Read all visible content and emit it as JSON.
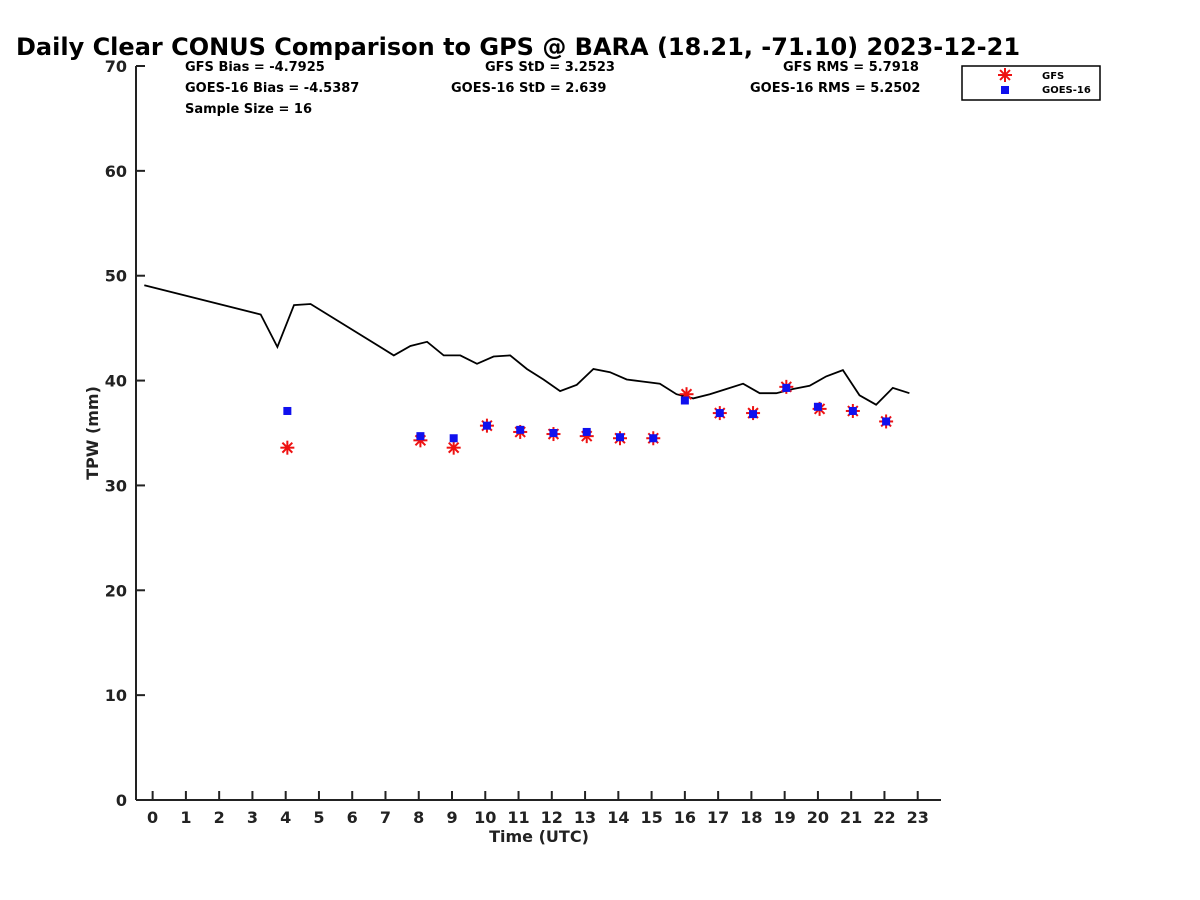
{
  "chart_data": {
    "type": "scatter",
    "title": "Daily Clear CONUS Comparison to GPS @ BARA (18.21, -71.10) 2023-12-21",
    "xlabel": "Time (UTC)",
    "ylabel": "TPW (mm)",
    "xlim": [
      -0.5,
      23.7
    ],
    "ylim": [
      0,
      70
    ],
    "x_ticks": [
      0,
      1,
      2,
      3,
      4,
      5,
      6,
      7,
      8,
      9,
      10,
      11,
      12,
      13,
      14,
      15,
      16,
      17,
      18,
      19,
      20,
      21,
      22,
      23
    ],
    "y_ticks": [
      0,
      10,
      20,
      30,
      40,
      50,
      60,
      70
    ],
    "grid": false,
    "legend_position": "top-right",
    "stats": {
      "gfs_bias": "GFS Bias = -4.7925",
      "goes_bias": "GOES-16 Bias = -4.5387",
      "sample_size": "Sample Size = 16",
      "gfs_std": "GFS StD = 3.2523",
      "goes_std": "GOES-16 StD = 2.639",
      "gfs_rms": "GFS RMS = 5.7918",
      "goes_rms": "GOES-16 RMS = 5.2502"
    },
    "gps_line": {
      "color": "#000000",
      "x": [
        -0.25,
        3.25,
        3.75,
        4.25,
        4.75,
        7.25,
        7.75,
        8.25,
        8.75,
        9.25,
        9.75,
        10.25,
        10.75,
        11.25,
        11.75,
        12.25,
        12.75,
        13.25,
        13.75,
        14.25,
        14.75,
        15.25,
        15.75,
        16.25,
        16.75,
        17.25,
        17.75,
        18.25,
        18.75,
        19.25,
        19.75,
        20.25,
        20.75,
        21.25,
        21.75,
        22.25,
        22.75
      ],
      "y": [
        49.1,
        46.3,
        43.2,
        47.2,
        47.3,
        42.4,
        43.3,
        43.7,
        42.4,
        42.4,
        41.6,
        42.3,
        42.4,
        41.1,
        40.1,
        39.0,
        39.6,
        41.1,
        40.8,
        40.1,
        39.9,
        39.7,
        38.7,
        38.3,
        38.7,
        39.2,
        39.7,
        38.8,
        38.8,
        39.2,
        39.5,
        40.4,
        41.0,
        38.6,
        37.7,
        39.3,
        38.8
      ]
    },
    "series": [
      {
        "name": "GFS",
        "marker": "asterisk",
        "color": "#ee1111",
        "x": [
          4.05,
          8.05,
          9.05,
          10.05,
          11.05,
          12.05,
          13.05,
          14.05,
          15.05,
          16.05,
          17.05,
          18.05,
          19.05,
          20.05,
          21.05,
          22.05
        ],
        "y": [
          33.6,
          34.3,
          33.6,
          35.7,
          35.1,
          34.9,
          34.7,
          34.5,
          34.5,
          38.7,
          36.9,
          36.9,
          39.4,
          37.3,
          37.1,
          36.1
        ]
      },
      {
        "name": "GOES-16",
        "marker": "square",
        "color": "#1010ee",
        "x": [
          4.05,
          8.05,
          9.05,
          10.05,
          11.05,
          12.05,
          13.05,
          14.05,
          15.05,
          16.0,
          17.05,
          18.05,
          19.05,
          20.0,
          21.05,
          22.05
        ],
        "y": [
          37.1,
          34.7,
          34.5,
          35.7,
          35.3,
          35.0,
          35.1,
          34.6,
          34.5,
          38.1,
          36.9,
          36.8,
          39.3,
          37.5,
          37.1,
          36.1
        ]
      }
    ]
  }
}
